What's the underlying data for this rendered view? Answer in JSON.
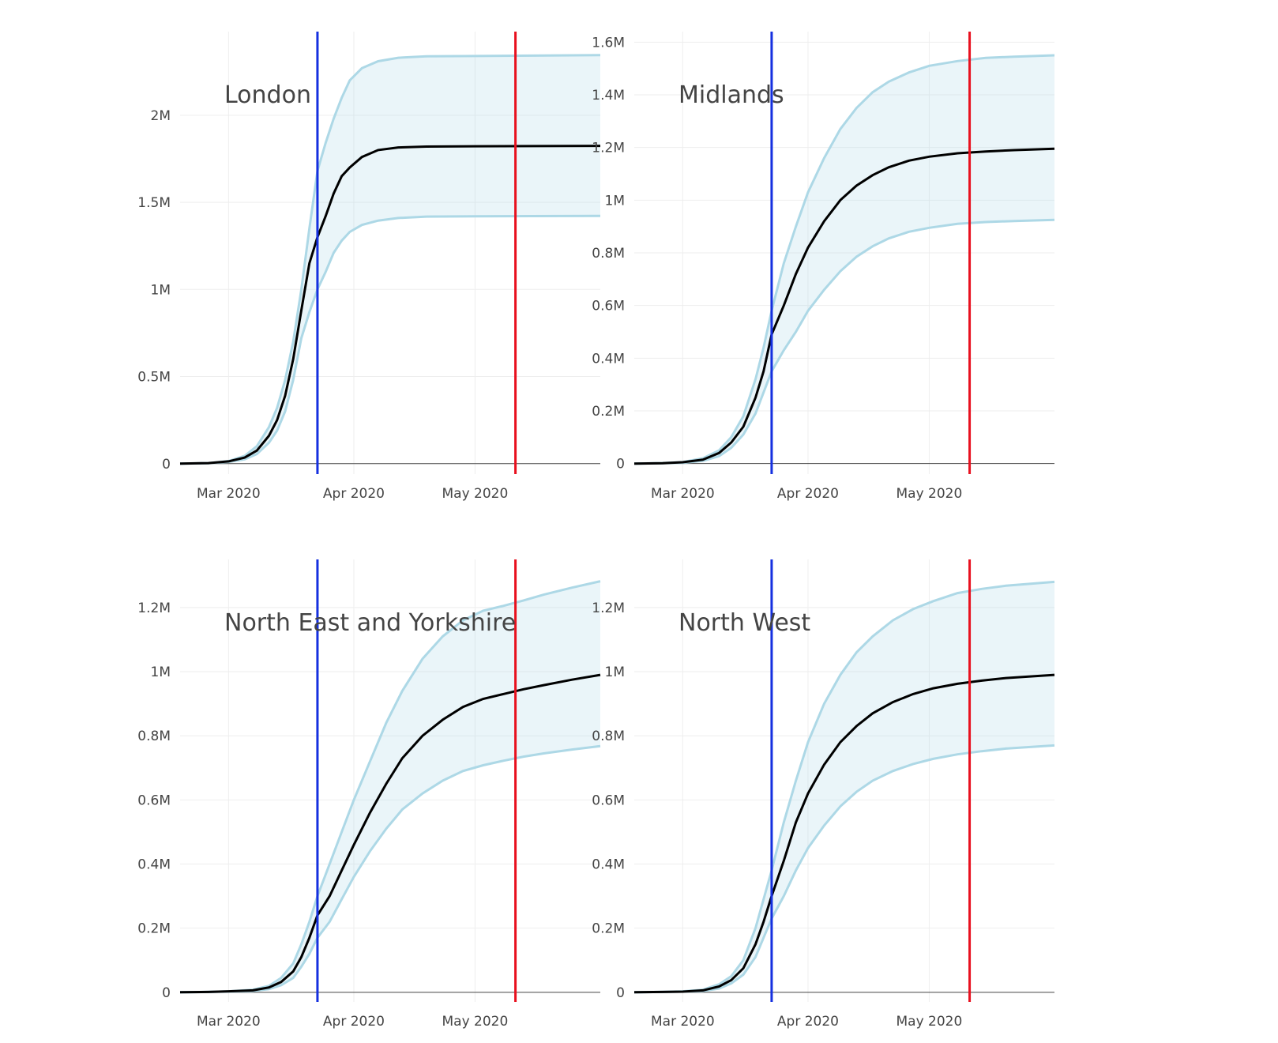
{
  "chart_data": [
    {
      "type": "line",
      "title": "London",
      "x_ticks": [
        "2020-03-01",
        "2020-04-01",
        "2020-05-01"
      ],
      "x_tick_labels": [
        "Mar 2020",
        "Apr 2020",
        "May 2020"
      ],
      "xlim": [
        "2020-02-18",
        "2020-06-01"
      ],
      "y_ticks": [
        0,
        500000,
        1000000,
        1500000,
        2000000
      ],
      "y_tick_labels": [
        "0",
        "0.5M",
        "1M",
        "1.5M",
        "2M"
      ],
      "ylim": [
        -60000,
        2480000
      ],
      "grid": true,
      "vertical_lines": [
        {
          "date": "2020-03-23",
          "color": "#1530e0"
        },
        {
          "date": "2020-05-11",
          "color": "#e8101e"
        }
      ],
      "series": [
        {
          "role": "upper",
          "color": "#add8e6",
          "x": [
            "2020-02-18",
            "2020-02-25",
            "2020-03-01",
            "2020-03-05",
            "2020-03-08",
            "2020-03-11",
            "2020-03-13",
            "2020-03-15",
            "2020-03-17",
            "2020-03-19",
            "2020-03-21",
            "2020-03-23",
            "2020-03-25",
            "2020-03-27",
            "2020-03-29",
            "2020-03-31",
            "2020-04-03",
            "2020-04-07",
            "2020-04-12",
            "2020-04-19",
            "2020-05-01",
            "2020-05-15",
            "2020-06-01"
          ],
          "y": [
            0,
            3000,
            15000,
            45000,
            100000,
            210000,
            320000,
            480000,
            700000,
            1000000,
            1350000,
            1680000,
            1840000,
            1980000,
            2100000,
            2200000,
            2270000,
            2310000,
            2330000,
            2338000,
            2340000,
            2342000,
            2345000
          ]
        },
        {
          "role": "median",
          "color": "#000000",
          "x": [
            "2020-02-18",
            "2020-02-25",
            "2020-03-01",
            "2020-03-05",
            "2020-03-08",
            "2020-03-11",
            "2020-03-13",
            "2020-03-15",
            "2020-03-17",
            "2020-03-19",
            "2020-03-21",
            "2020-03-23",
            "2020-03-25",
            "2020-03-27",
            "2020-03-29",
            "2020-03-31",
            "2020-04-03",
            "2020-04-07",
            "2020-04-12",
            "2020-04-19",
            "2020-05-01",
            "2020-05-15",
            "2020-06-01"
          ],
          "y": [
            0,
            3000,
            13000,
            35000,
            75000,
            160000,
            250000,
            390000,
            600000,
            880000,
            1150000,
            1300000,
            1420000,
            1550000,
            1650000,
            1700000,
            1760000,
            1800000,
            1815000,
            1820000,
            1822000,
            1823000,
            1824000
          ]
        },
        {
          "role": "lower",
          "color": "#add8e6",
          "x": [
            "2020-02-18",
            "2020-02-25",
            "2020-03-01",
            "2020-03-05",
            "2020-03-08",
            "2020-03-11",
            "2020-03-13",
            "2020-03-15",
            "2020-03-17",
            "2020-03-19",
            "2020-03-21",
            "2020-03-23",
            "2020-03-25",
            "2020-03-27",
            "2020-03-29",
            "2020-03-31",
            "2020-04-03",
            "2020-04-07",
            "2020-04-12",
            "2020-04-19",
            "2020-05-01",
            "2020-05-15",
            "2020-06-01"
          ],
          "y": [
            0,
            2000,
            10000,
            25000,
            55000,
            120000,
            190000,
            300000,
            480000,
            720000,
            870000,
            1000000,
            1100000,
            1210000,
            1280000,
            1330000,
            1370000,
            1395000,
            1410000,
            1418000,
            1420000,
            1421000,
            1422000
          ]
        }
      ]
    },
    {
      "type": "line",
      "title": "Midlands",
      "x_ticks": [
        "2020-03-01",
        "2020-04-01",
        "2020-05-01"
      ],
      "x_tick_labels": [
        "Mar 2020",
        "Apr 2020",
        "May 2020"
      ],
      "xlim": [
        "2020-02-18",
        "2020-06-01"
      ],
      "y_ticks": [
        0,
        200000,
        400000,
        600000,
        800000,
        1000000,
        1200000,
        1400000,
        1600000
      ],
      "y_tick_labels": [
        "0",
        "0.2M",
        "0.4M",
        "0.6M",
        "0.8M",
        "1M",
        "1.2M",
        "1.4M",
        "1.6M"
      ],
      "ylim": [
        -40000,
        1640000
      ],
      "grid": true,
      "vertical_lines": [
        {
          "date": "2020-03-23",
          "color": "#1530e0"
        },
        {
          "date": "2020-05-11",
          "color": "#e8101e"
        }
      ],
      "series": [
        {
          "role": "upper",
          "color": "#add8e6",
          "x": [
            "2020-02-18",
            "2020-02-25",
            "2020-03-01",
            "2020-03-06",
            "2020-03-10",
            "2020-03-13",
            "2020-03-16",
            "2020-03-19",
            "2020-03-21",
            "2020-03-23",
            "2020-03-26",
            "2020-03-29",
            "2020-04-01",
            "2020-04-05",
            "2020-04-09",
            "2020-04-13",
            "2020-04-17",
            "2020-04-21",
            "2020-04-26",
            "2020-05-01",
            "2020-05-08",
            "2020-05-15",
            "2020-05-22",
            "2020-06-01"
          ],
          "y": [
            0,
            2000,
            6000,
            20000,
            50000,
            100000,
            180000,
            320000,
            440000,
            580000,
            760000,
            900000,
            1030000,
            1160000,
            1270000,
            1350000,
            1410000,
            1450000,
            1485000,
            1510000,
            1528000,
            1540000,
            1545000,
            1550000
          ]
        },
        {
          "role": "median",
          "color": "#000000",
          "x": [
            "2020-02-18",
            "2020-02-25",
            "2020-03-01",
            "2020-03-06",
            "2020-03-10",
            "2020-03-13",
            "2020-03-16",
            "2020-03-19",
            "2020-03-21",
            "2020-03-23",
            "2020-03-26",
            "2020-03-29",
            "2020-04-01",
            "2020-04-05",
            "2020-04-09",
            "2020-04-13",
            "2020-04-17",
            "2020-04-21",
            "2020-04-26",
            "2020-05-01",
            "2020-05-08",
            "2020-05-15",
            "2020-05-22",
            "2020-06-01"
          ],
          "y": [
            0,
            1500,
            5000,
            15000,
            40000,
            80000,
            140000,
            250000,
            350000,
            490000,
            600000,
            720000,
            820000,
            920000,
            1000000,
            1055000,
            1095000,
            1125000,
            1150000,
            1165000,
            1178000,
            1185000,
            1190000,
            1195000
          ]
        },
        {
          "role": "lower",
          "color": "#add8e6",
          "x": [
            "2020-02-18",
            "2020-02-25",
            "2020-03-01",
            "2020-03-06",
            "2020-03-10",
            "2020-03-13",
            "2020-03-16",
            "2020-03-19",
            "2020-03-21",
            "2020-03-23",
            "2020-03-26",
            "2020-03-29",
            "2020-04-01",
            "2020-04-05",
            "2020-04-09",
            "2020-04-13",
            "2020-04-17",
            "2020-04-21",
            "2020-04-26",
            "2020-05-01",
            "2020-05-08",
            "2020-05-15",
            "2020-05-22",
            "2020-06-01"
          ],
          "y": [
            0,
            1000,
            3000,
            10000,
            28000,
            60000,
            110000,
            190000,
            270000,
            350000,
            430000,
            500000,
            580000,
            660000,
            730000,
            785000,
            825000,
            855000,
            880000,
            895000,
            910000,
            917000,
            921000,
            925000
          ]
        }
      ]
    },
    {
      "type": "line",
      "title": "North East and Yorkshire",
      "x_ticks": [
        "2020-03-01",
        "2020-04-01",
        "2020-05-01"
      ],
      "x_tick_labels": [
        "Mar 2020",
        "Apr 2020",
        "May 2020"
      ],
      "xlim": [
        "2020-02-18",
        "2020-06-01"
      ],
      "y_ticks": [
        0,
        200000,
        400000,
        600000,
        800000,
        1000000,
        1200000
      ],
      "y_tick_labels": [
        "0",
        "0.2M",
        "0.4M",
        "0.6M",
        "0.8M",
        "1M",
        "1.2M"
      ],
      "ylim": [
        -30000,
        1350000
      ],
      "grid": true,
      "vertical_lines": [
        {
          "date": "2020-03-23",
          "color": "#1530e0"
        },
        {
          "date": "2020-05-11",
          "color": "#e8101e"
        }
      ],
      "series": [
        {
          "role": "upper",
          "color": "#add8e6",
          "x": [
            "2020-02-18",
            "2020-02-25",
            "2020-03-01",
            "2020-03-07",
            "2020-03-11",
            "2020-03-14",
            "2020-03-17",
            "2020-03-19",
            "2020-03-21",
            "2020-03-23",
            "2020-03-26",
            "2020-03-29",
            "2020-04-01",
            "2020-04-05",
            "2020-04-09",
            "2020-04-13",
            "2020-04-18",
            "2020-04-23",
            "2020-04-28",
            "2020-05-03",
            "2020-05-08",
            "2020-05-13",
            "2020-05-18",
            "2020-05-25",
            "2020-06-01"
          ],
          "y": [
            0,
            1000,
            3000,
            8000,
            20000,
            45000,
            90000,
            150000,
            220000,
            300000,
            400000,
            500000,
            600000,
            720000,
            840000,
            940000,
            1040000,
            1110000,
            1160000,
            1190000,
            1205000,
            1222000,
            1240000,
            1262000,
            1282000
          ]
        },
        {
          "role": "median",
          "color": "#000000",
          "x": [
            "2020-02-18",
            "2020-02-25",
            "2020-03-01",
            "2020-03-07",
            "2020-03-11",
            "2020-03-14",
            "2020-03-17",
            "2020-03-19",
            "2020-03-21",
            "2020-03-23",
            "2020-03-26",
            "2020-03-29",
            "2020-04-01",
            "2020-04-05",
            "2020-04-09",
            "2020-04-13",
            "2020-04-18",
            "2020-04-23",
            "2020-04-28",
            "2020-05-03",
            "2020-05-08",
            "2020-05-13",
            "2020-05-18",
            "2020-05-25",
            "2020-06-01"
          ],
          "y": [
            0,
            1000,
            3000,
            6000,
            15000,
            32000,
            65000,
            110000,
            170000,
            240000,
            300000,
            380000,
            460000,
            560000,
            650000,
            730000,
            800000,
            850000,
            890000,
            915000,
            930000,
            945000,
            958000,
            975000,
            990000
          ]
        },
        {
          "role": "lower",
          "color": "#add8e6",
          "x": [
            "2020-02-18",
            "2020-02-25",
            "2020-03-01",
            "2020-03-07",
            "2020-03-11",
            "2020-03-14",
            "2020-03-17",
            "2020-03-19",
            "2020-03-21",
            "2020-03-23",
            "2020-03-26",
            "2020-03-29",
            "2020-04-01",
            "2020-04-05",
            "2020-04-09",
            "2020-04-13",
            "2020-04-18",
            "2020-04-23",
            "2020-04-28",
            "2020-05-03",
            "2020-05-08",
            "2020-05-13",
            "2020-05-18",
            "2020-05-25",
            "2020-06-01"
          ],
          "y": [
            0,
            1000,
            2000,
            4000,
            10000,
            22000,
            45000,
            80000,
            120000,
            170000,
            220000,
            290000,
            360000,
            440000,
            510000,
            570000,
            620000,
            660000,
            690000,
            708000,
            722000,
            735000,
            745000,
            757000,
            768000
          ]
        }
      ]
    },
    {
      "type": "line",
      "title": "North West",
      "x_ticks": [
        "2020-03-01",
        "2020-04-01",
        "2020-05-01"
      ],
      "x_tick_labels": [
        "Mar 2020",
        "Apr 2020",
        "May 2020"
      ],
      "xlim": [
        "2020-02-18",
        "2020-06-01"
      ],
      "y_ticks": [
        0,
        200000,
        400000,
        600000,
        800000,
        1000000,
        1200000
      ],
      "y_tick_labels": [
        "0",
        "0.2M",
        "0.4M",
        "0.6M",
        "0.8M",
        "1M",
        "1.2M"
      ],
      "ylim": [
        -30000,
        1350000
      ],
      "grid": true,
      "vertical_lines": [
        {
          "date": "2020-03-23",
          "color": "#1530e0"
        },
        {
          "date": "2020-05-11",
          "color": "#e8101e"
        }
      ],
      "series": [
        {
          "role": "upper",
          "color": "#add8e6",
          "x": [
            "2020-02-18",
            "2020-02-25",
            "2020-03-01",
            "2020-03-06",
            "2020-03-10",
            "2020-03-13",
            "2020-03-16",
            "2020-03-19",
            "2020-03-21",
            "2020-03-23",
            "2020-03-26",
            "2020-03-29",
            "2020-04-01",
            "2020-04-05",
            "2020-04-09",
            "2020-04-13",
            "2020-04-17",
            "2020-04-22",
            "2020-04-27",
            "2020-05-02",
            "2020-05-08",
            "2020-05-14",
            "2020-05-20",
            "2020-06-01"
          ],
          "y": [
            0,
            1000,
            3000,
            8000,
            25000,
            50000,
            100000,
            200000,
            290000,
            380000,
            530000,
            660000,
            780000,
            900000,
            990000,
            1060000,
            1110000,
            1160000,
            1195000,
            1220000,
            1245000,
            1258000,
            1268000,
            1280000
          ]
        },
        {
          "role": "median",
          "color": "#000000",
          "x": [
            "2020-02-18",
            "2020-02-25",
            "2020-03-01",
            "2020-03-06",
            "2020-03-10",
            "2020-03-13",
            "2020-03-16",
            "2020-03-19",
            "2020-03-21",
            "2020-03-23",
            "2020-03-26",
            "2020-03-29",
            "2020-04-01",
            "2020-04-05",
            "2020-04-09",
            "2020-04-13",
            "2020-04-17",
            "2020-04-22",
            "2020-04-27",
            "2020-05-02",
            "2020-05-08",
            "2020-05-14",
            "2020-05-20",
            "2020-06-01"
          ],
          "y": [
            0,
            1000,
            2000,
            6000,
            18000,
            38000,
            75000,
            150000,
            220000,
            300000,
            410000,
            530000,
            620000,
            710000,
            780000,
            830000,
            870000,
            905000,
            930000,
            948000,
            962000,
            972000,
            980000,
            990000
          ]
        },
        {
          "role": "lower",
          "color": "#add8e6",
          "x": [
            "2020-02-18",
            "2020-02-25",
            "2020-03-01",
            "2020-03-06",
            "2020-03-10",
            "2020-03-13",
            "2020-03-16",
            "2020-03-19",
            "2020-03-21",
            "2020-03-23",
            "2020-03-26",
            "2020-03-29",
            "2020-04-01",
            "2020-04-05",
            "2020-04-09",
            "2020-04-13",
            "2020-04-17",
            "2020-04-22",
            "2020-04-27",
            "2020-05-02",
            "2020-05-08",
            "2020-05-14",
            "2020-05-20",
            "2020-06-01"
          ],
          "y": [
            0,
            1000,
            2000,
            4000,
            12000,
            28000,
            55000,
            110000,
            170000,
            230000,
            300000,
            380000,
            450000,
            520000,
            580000,
            625000,
            660000,
            690000,
            712000,
            728000,
            742000,
            752000,
            760000,
            770000
          ]
        }
      ]
    }
  ]
}
